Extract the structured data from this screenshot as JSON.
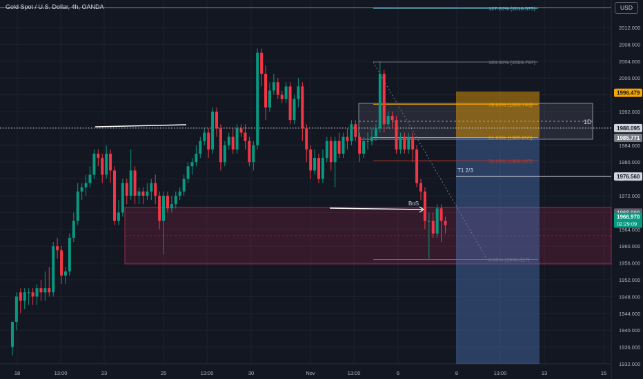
{
  "header": {
    "symbol_title": "Gold Spot / U.S. Dollar, 4h, OANDA",
    "currency": "USD"
  },
  "colors": {
    "background": "#131722",
    "up": "#089981",
    "down": "#f23645",
    "grid": "#1e222d",
    "text": "#b2b5be",
    "fib_100": "#787b86",
    "fib_786": "#f7a600",
    "fib_618": "#f7a600",
    "fib_50": "#c0392b",
    "fib_0": "#787b86",
    "fib_1272": "#5ec4d6"
  },
  "chart_data": {
    "type": "candlestick",
    "title": "Gold Spot / U.S. Dollar, 4h, OANDA",
    "ylim": [
      1930,
      2018
    ],
    "y_ticks": [
      "1932.000",
      "1936.000",
      "1940.000",
      "1944.000",
      "1948.000",
      "1952.000",
      "1956.000",
      "1960.000",
      "1964.000",
      "1968.000",
      "1972.000",
      "1976.000",
      "1980.000",
      "1984.000",
      "1988.000",
      "1992.000",
      "1996.000",
      "2000.000",
      "2004.000",
      "2008.000",
      "2012.000"
    ],
    "x_ticks": [
      "18",
      "13:00",
      "23",
      "25",
      "13:00",
      "30",
      "Nov",
      "13:00",
      "6",
      "8",
      "13:00",
      "13",
      "15"
    ],
    "price_labels": [
      {
        "name": "alert-level",
        "value": 1996.479,
        "text": "1996.479"
      },
      {
        "name": "dotted-level",
        "value": 1988.095,
        "text": "1988.095"
      },
      {
        "name": "zone-top",
        "value": 1985.771,
        "text": "1985.771"
      },
      {
        "name": "target-level",
        "value": 1976.56,
        "text": "1976.560"
      },
      {
        "name": "zone-level",
        "value": 1968.0,
        "text": "1968.000"
      },
      {
        "name": "last-price",
        "value": 1966.97,
        "text": "1966.970"
      }
    ],
    "countdown": "02:29:09",
    "fib_levels": [
      {
        "pct": "127.20%",
        "price": 2016.575,
        "label": "127.20% (2016.575)"
      },
      {
        "pct": "100.00%",
        "price": 2003.797,
        "label": "100.00% (2003.797)"
      },
      {
        "pct": "78.60%",
        "price": 1993.743,
        "label": "78.60% (1993.743)"
      },
      {
        "pct": "61.80%",
        "price": 1985.85,
        "label": "61.80% (1985.850)"
      },
      {
        "pct": "50.00%",
        "price": 1980.307,
        "label": "50.00% (1980.307)"
      },
      {
        "pct": "0.00%",
        "price": 1956.817,
        "label": "0.00% (1956.817)"
      }
    ],
    "annotations": {
      "zone_1d_label": "1D",
      "target_label": "T1 2/3",
      "bos_label": "BoS"
    },
    "candles": [
      [
        1936,
        1942,
        1934,
        1942
      ],
      [
        1942,
        1948,
        1940,
        1949
      ],
      [
        1949,
        1947,
        1944,
        1950
      ],
      [
        1947,
        1949,
        1945,
        1950
      ],
      [
        1949,
        1949,
        1946,
        1950
      ],
      [
        1949,
        1948,
        1946,
        1950
      ],
      [
        1948,
        1950,
        1946,
        1951
      ],
      [
        1950,
        1949,
        1947,
        1952
      ],
      [
        1949,
        1950,
        1947,
        1954
      ],
      [
        1950,
        1949,
        1948,
        1955
      ],
      [
        1949,
        1960,
        1948,
        1961
      ],
      [
        1960,
        1959,
        1957,
        1962
      ],
      [
        1959,
        1953,
        1951,
        1960
      ],
      [
        1953,
        1954,
        1951,
        1955
      ],
      [
        1954,
        1962,
        1953,
        1963
      ],
      [
        1962,
        1966,
        1961,
        1968
      ],
      [
        1966,
        1973,
        1965,
        1975
      ],
      [
        1973,
        1974,
        1971,
        1975
      ],
      [
        1974,
        1975,
        1972,
        1977
      ],
      [
        1975,
        1977,
        1974,
        1979
      ],
      [
        1977,
        1982,
        1976,
        1983
      ],
      [
        1982,
        1981,
        1979,
        1983
      ],
      [
        1981,
        1977,
        1975,
        1982
      ],
      [
        1977,
        1982,
        1976,
        1984
      ],
      [
        1982,
        1978,
        1975,
        1983
      ],
      [
        1978,
        1966,
        1965,
        1979
      ],
      [
        1966,
        1968,
        1965,
        1971
      ],
      [
        1968,
        1975,
        1967,
        1976
      ],
      [
        1975,
        1972,
        1970,
        1976
      ],
      [
        1972,
        1978,
        1971,
        1983
      ],
      [
        1978,
        1972,
        1970,
        1979
      ],
      [
        1972,
        1973,
        1970,
        1974
      ],
      [
        1973,
        1972,
        1970,
        1974
      ],
      [
        1972,
        1973,
        1971,
        1975
      ],
      [
        1973,
        1975,
        1971,
        1976
      ],
      [
        1975,
        1972,
        1970,
        1977
      ],
      [
        1972,
        1966,
        1964,
        1973
      ],
      [
        1966,
        1972,
        1958,
        1973
      ],
      [
        1972,
        1969,
        1968,
        1973
      ],
      [
        1969,
        1970,
        1968,
        1972
      ],
      [
        1970,
        1972,
        1969,
        1973
      ],
      [
        1972,
        1973,
        1971,
        1974
      ],
      [
        1973,
        1976,
        1972,
        1977
      ],
      [
        1976,
        1979,
        1975,
        1980
      ],
      [
        1979,
        1980,
        1977,
        1981
      ],
      [
        1980,
        1982,
        1979,
        1984
      ],
      [
        1982,
        1985,
        1981,
        1986
      ],
      [
        1985,
        1987,
        1984,
        1988
      ],
      [
        1987,
        1983,
        1981,
        1988
      ],
      [
        1983,
        1992,
        1982,
        1993
      ],
      [
        1992,
        1988,
        1986,
        1993
      ],
      [
        1988,
        1980,
        1978,
        1989
      ],
      [
        1980,
        1984,
        1979,
        1985
      ],
      [
        1984,
        1986,
        1983,
        1987
      ],
      [
        1986,
        1983,
        1982,
        1988
      ],
      [
        1983,
        1988,
        1982,
        1989
      ],
      [
        1988,
        1987,
        1986,
        1989
      ],
      [
        1987,
        1985,
        1983,
        1989
      ],
      [
        1985,
        1980,
        1979,
        1986
      ],
      [
        1980,
        1984,
        1978,
        1985
      ],
      [
        1984,
        2006,
        1983,
        2007
      ],
      [
        2006,
        2001,
        1998,
        2007
      ],
      [
        2001,
        1993,
        1990,
        2003
      ],
      [
        1993,
        1997,
        1992,
        1999
      ],
      [
        1997,
        1999,
        1996,
        2001
      ],
      [
        1999,
        1996,
        1995,
        2000
      ],
      [
        1996,
        1995,
        1994,
        1997
      ],
      [
        1995,
        1998,
        1994,
        1999
      ],
      [
        1998,
        1990,
        1989,
        1999
      ],
      [
        1990,
        1995,
        1989,
        1996
      ],
      [
        1995,
        1998,
        1993,
        2000
      ],
      [
        1998,
        1988,
        1985,
        1999
      ],
      [
        1988,
        1983,
        1980,
        1989
      ],
      [
        1983,
        1978,
        1976,
        1984
      ],
      [
        1978,
        1981,
        1977,
        1983
      ],
      [
        1981,
        1976,
        1975,
        1982
      ],
      [
        1976,
        1981,
        1975,
        1983
      ],
      [
        1981,
        1985,
        1980,
        1986
      ],
      [
        1985,
        1980,
        1978,
        1986
      ],
      [
        1980,
        1985,
        1974,
        1986
      ],
      [
        1985,
        1982,
        1981,
        1987
      ],
      [
        1982,
        1986,
        1981,
        1987
      ],
      [
        1986,
        1985,
        1983,
        1988
      ],
      [
        1985,
        1989,
        1984,
        1990
      ],
      [
        1989,
        1986,
        1985,
        1990
      ],
      [
        1986,
        1982,
        1980,
        1987
      ],
      [
        1982,
        1985,
        1981,
        1986
      ],
      [
        1985,
        1985,
        1983,
        1987
      ],
      [
        1985,
        1986,
        1984,
        1988
      ],
      [
        1986,
        1988,
        1985,
        1989
      ],
      [
        1988,
        2001,
        1987,
        2004
      ],
      [
        2001,
        1989,
        1987,
        2002
      ],
      [
        1989,
        1991,
        1988,
        1992
      ],
      [
        1991,
        1990,
        1988,
        1992
      ],
      [
        1990,
        1983,
        1982,
        1991
      ],
      [
        1983,
        1986,
        1982,
        1987
      ],
      [
        1986,
        1983,
        1982,
        1987
      ],
      [
        1983,
        1986,
        1982,
        1987
      ],
      [
        1986,
        1983,
        1980,
        1987
      ],
      [
        1983,
        1975,
        1974,
        1984
      ],
      [
        1975,
        1973,
        1971,
        1976
      ],
      [
        1973,
        1966,
        1964,
        1974
      ],
      [
        1966,
        1966,
        1957,
        1968
      ],
      [
        1966,
        1963,
        1962,
        1968
      ],
      [
        1963,
        1969,
        1962,
        1970
      ],
      [
        1969,
        1966,
        1961,
        1970
      ],
      [
        1966,
        1965,
        1963,
        1967
      ]
    ]
  }
}
